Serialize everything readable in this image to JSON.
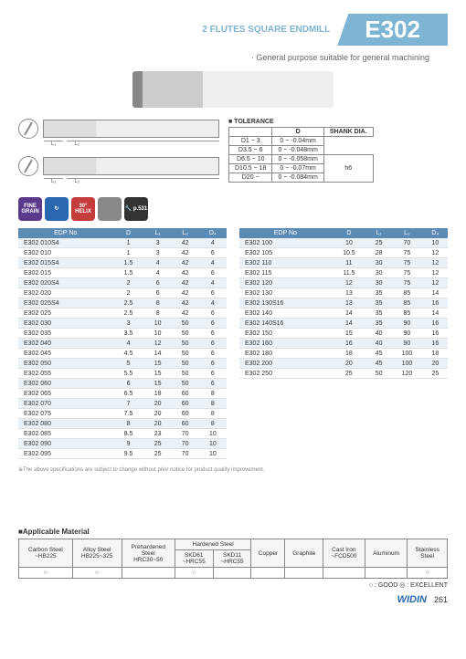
{
  "header": {
    "subtitle": "2 FLUTES SQUARE ENDMILL",
    "model": "E302"
  },
  "caption": "· General purpose suitable for general machining",
  "badges": [
    {
      "label": "FINE\nGRAIN",
      "cls": "b-purple"
    },
    {
      "label": "↻",
      "cls": "b-blue"
    },
    {
      "label": "30°\nHELIX",
      "cls": "b-red"
    },
    {
      "label": "",
      "cls": "b-gray"
    },
    {
      "label": "🔧\np.531",
      "cls": "b-dark"
    }
  ],
  "tolerance": {
    "title": "■ TOLERANCE",
    "headers": [
      "",
      "D",
      "SHANK DIA."
    ],
    "rows": [
      [
        "D1 ~ 3",
        "0 ~ -0.04mm",
        ""
      ],
      [
        "D3.5 ~ 6",
        "0 ~ -0.048mm",
        ""
      ],
      [
        "D6.5 ~ 10",
        "0 ~ -0.058mm",
        "h6"
      ],
      [
        "D10.5 ~ 18",
        "0 ~ -0.07mm",
        ""
      ],
      [
        "D20 ~",
        "0 ~ -0.084mm",
        ""
      ]
    ]
  },
  "spec": {
    "headers": [
      "EDP No",
      "D",
      "L₁",
      "L₂",
      "D₄"
    ],
    "left": [
      [
        "E302 010S4",
        "1",
        "3",
        "42",
        "4"
      ],
      [
        "E302 010",
        "1",
        "3",
        "42",
        "6"
      ],
      [
        "E302 015S4",
        "1.5",
        "4",
        "42",
        "4"
      ],
      [
        "E302 015",
        "1.5",
        "4",
        "42",
        "6"
      ],
      [
        "E302 020S4",
        "2",
        "6",
        "42",
        "4"
      ],
      [
        "E302 020",
        "2",
        "6",
        "42",
        "6"
      ],
      [
        "E302 025S4",
        "2.5",
        "8",
        "42",
        "4"
      ],
      [
        "E302 025",
        "2.5",
        "8",
        "42",
        "6"
      ],
      [
        "E302 030",
        "3",
        "10",
        "50",
        "6"
      ],
      [
        "E302 035",
        "3.5",
        "10",
        "50",
        "6"
      ],
      [
        "E302 040",
        "4",
        "12",
        "50",
        "6"
      ],
      [
        "E302 045",
        "4.5",
        "14",
        "50",
        "6"
      ],
      [
        "E302 050",
        "5",
        "15",
        "50",
        "6"
      ],
      [
        "E302 055",
        "5.5",
        "15",
        "50",
        "6"
      ],
      [
        "E302 060",
        "6",
        "15",
        "50",
        "6"
      ],
      [
        "E302 065",
        "6.5",
        "18",
        "60",
        "8"
      ],
      [
        "E302 070",
        "7",
        "20",
        "60",
        "8"
      ],
      [
        "E302 075",
        "7.5",
        "20",
        "60",
        "8"
      ],
      [
        "E302 080",
        "8",
        "20",
        "60",
        "8"
      ],
      [
        "E302 085",
        "8.5",
        "23",
        "70",
        "10"
      ],
      [
        "E302 090",
        "9",
        "25",
        "70",
        "10"
      ],
      [
        "E302 095",
        "9.5",
        "25",
        "70",
        "10"
      ]
    ],
    "right": [
      [
        "E302 100",
        "10",
        "25",
        "70",
        "10"
      ],
      [
        "E302 105",
        "10.5",
        "28",
        "75",
        "12"
      ],
      [
        "E302 110",
        "11",
        "30",
        "75",
        "12"
      ],
      [
        "E302 115",
        "11.5",
        "30",
        "75",
        "12"
      ],
      [
        "E302 120",
        "12",
        "30",
        "75",
        "12"
      ],
      [
        "E302 130",
        "13",
        "35",
        "85",
        "14"
      ],
      [
        "E302 130S16",
        "13",
        "35",
        "85",
        "16"
      ],
      [
        "E302 140",
        "14",
        "35",
        "85",
        "14"
      ],
      [
        "E302 140S16",
        "14",
        "35",
        "90",
        "16"
      ],
      [
        "E302 150",
        "15",
        "40",
        "90",
        "16"
      ],
      [
        "E302 160",
        "16",
        "40",
        "90",
        "16"
      ],
      [
        "E302 180",
        "18",
        "45",
        "100",
        "18"
      ],
      [
        "E302 200",
        "20",
        "45",
        "100",
        "20"
      ],
      [
        "E302 250",
        "25",
        "50",
        "120",
        "25"
      ]
    ]
  },
  "footnote": "※The above specifications are subject to change without prior notice for product quality improvement.",
  "materials": {
    "title": "■Applicable Material",
    "headers": [
      "Carbon Steel\n~HB225",
      "Alloy Steel\nHB225~325",
      "Prehardened\nSteel\nHRC30~50",
      "SKD61\n~HRC55",
      "SKD11\n~HRC55",
      "Copper",
      "Graphite",
      "Cast Iron\n~FCD500",
      "Aluminum",
      "Stainless\nSteel"
    ],
    "group_header": "Hardened Steel",
    "values": [
      "○",
      "○",
      "",
      "○",
      "",
      "",
      "",
      "",
      "",
      "○"
    ]
  },
  "legend": "○ : GOOD  ◎ : EXCELLENT",
  "footer": {
    "logo": "WIDIN",
    "page": "261"
  }
}
